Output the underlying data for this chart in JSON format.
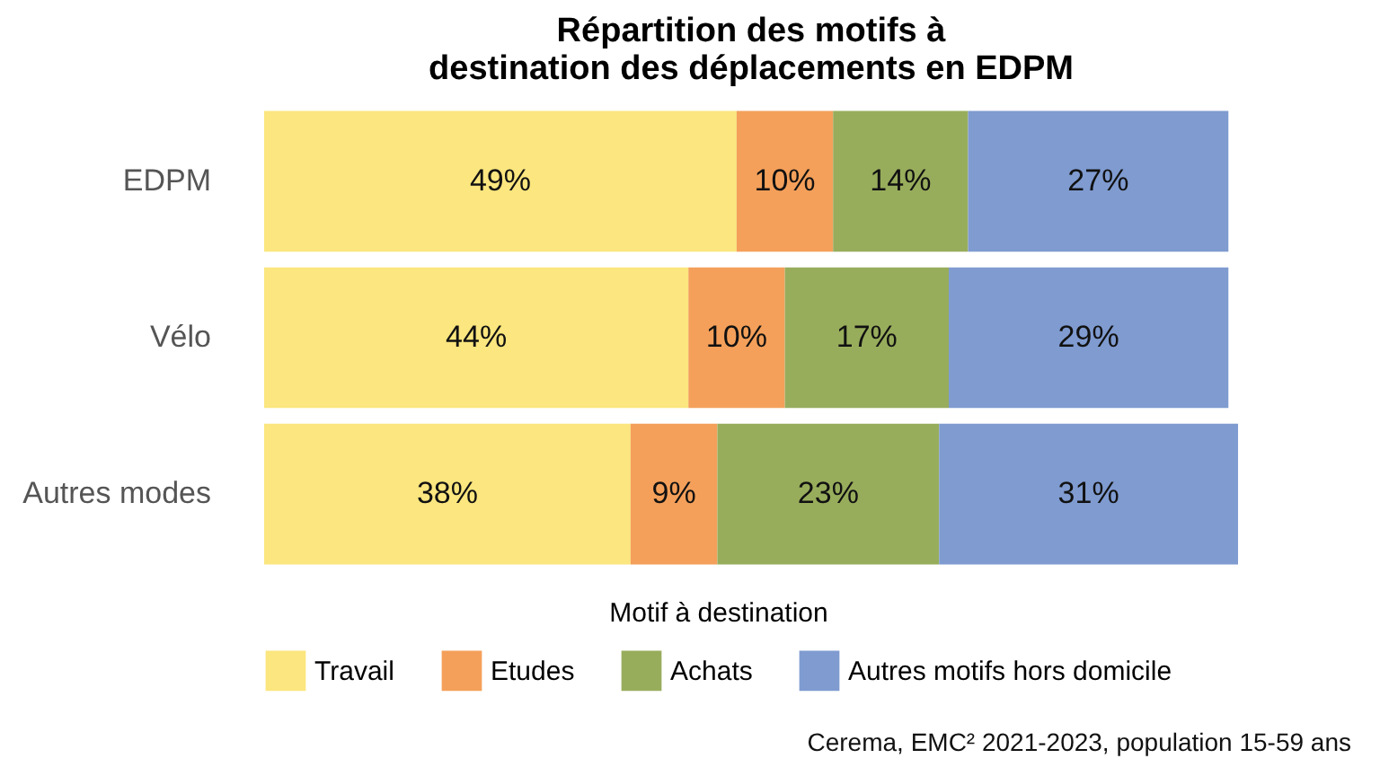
{
  "chart_data": {
    "type": "bar",
    "orientation": "horizontal",
    "stacked": true,
    "title": "Répartition des motifs à destination des déplacements en EDPM",
    "legend_title": "Motif à destination",
    "legend": "bottom",
    "categories": [
      "EDPM",
      "Vélo",
      "Autres modes"
    ],
    "series": [
      {
        "name": "Travail",
        "color": "#fbe67f",
        "values": [
          49,
          44,
          38
        ],
        "value_labels": [
          "49%",
          "44%",
          "38%"
        ]
      },
      {
        "name": "Etudes",
        "color": "#f4a05a",
        "values": [
          10,
          10,
          9
        ],
        "value_labels": [
          "10%",
          "10%",
          "9%"
        ]
      },
      {
        "name": "Achats",
        "color": "#98ad5c",
        "values": [
          14,
          17,
          23
        ],
        "value_labels": [
          "14%",
          "17%",
          "23%"
        ]
      },
      {
        "name": "Autres motifs hors domicile",
        "color": "#7f9bd0",
        "values": [
          27,
          29,
          31
        ],
        "value_labels": [
          "27%",
          "29%",
          "31%"
        ]
      }
    ],
    "annotations": [
      "Cerema, EMC² 2021-2023, population 15-59 ans"
    ]
  }
}
